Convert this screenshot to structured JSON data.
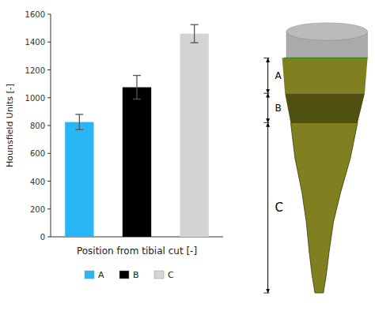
{
  "chart_data": {
    "type": "bar",
    "categories": [
      "A",
      "B",
      "C"
    ],
    "values": [
      825,
      1075,
      1460
    ],
    "errors": [
      55,
      85,
      65
    ],
    "colors": [
      "#29b6f6",
      "#000000",
      "#d4d4d4"
    ],
    "ylabel": "Hounsfield Units [-]",
    "xlabel": "Position from tibial cut [-]",
    "ylim": [
      0,
      1600
    ],
    "yticks": [
      0,
      200,
      400,
      600,
      800,
      1000,
      1200,
      1400,
      1600
    ],
    "grid": false,
    "legend": "bottom",
    "tick_labels": "y",
    "annotations": [
      "A",
      "B",
      "C"
    ]
  }
}
